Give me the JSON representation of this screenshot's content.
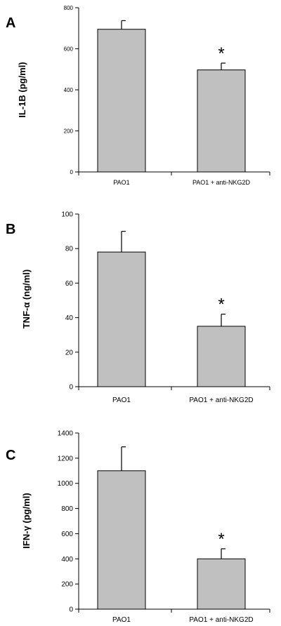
{
  "colors": {
    "bar_fill": "#c0c0c0",
    "bar_stroke": "#000000",
    "axis": "#000000",
    "text": "#000000"
  },
  "chart_data": [
    {
      "panel_letter": "A",
      "type": "bar",
      "ylabel": "IL-1B (pg/ml)",
      "categories": [
        "PAO1",
        "PAO1 + anti-NKG2D"
      ],
      "values": [
        695,
        497
      ],
      "errors": [
        42,
        33
      ],
      "significance": [
        "",
        "*"
      ],
      "ylim": [
        0,
        800
      ],
      "yticks": [
        0,
        200,
        400,
        600,
        800
      ],
      "ytick_labels": [
        "0",
        "200",
        "400",
        "600",
        "800"
      ],
      "grid": false
    },
    {
      "panel_letter": "B",
      "type": "bar",
      "ylabel": "TNF-α (ng/ml)",
      "categories": [
        "PAO1",
        "PAO1 + anti-NKG2D"
      ],
      "values": [
        78,
        35
      ],
      "errors": [
        12,
        7
      ],
      "significance": [
        "",
        "*"
      ],
      "ylim": [
        0,
        100
      ],
      "yticks": [
        0,
        20,
        40,
        60,
        80,
        100
      ],
      "ytick_labels": [
        "0",
        "20",
        "40",
        "60",
        "80",
        "100"
      ],
      "grid": false
    },
    {
      "panel_letter": "C",
      "type": "bar",
      "ylabel": "IFN-γ (pg/ml)",
      "categories": [
        "PAO1",
        "PAO1 + anti-NKG2D"
      ],
      "values": [
        1100,
        400
      ],
      "errors": [
        190,
        80
      ],
      "significance": [
        "",
        "*"
      ],
      "ylim": [
        0,
        1400
      ],
      "yticks": [
        0,
        200,
        400,
        600,
        800,
        1000,
        1200,
        1400
      ],
      "ytick_labels": [
        "0",
        "200",
        "400",
        "600",
        "800",
        "1000",
        "1200",
        "1400"
      ],
      "grid": false
    }
  ]
}
